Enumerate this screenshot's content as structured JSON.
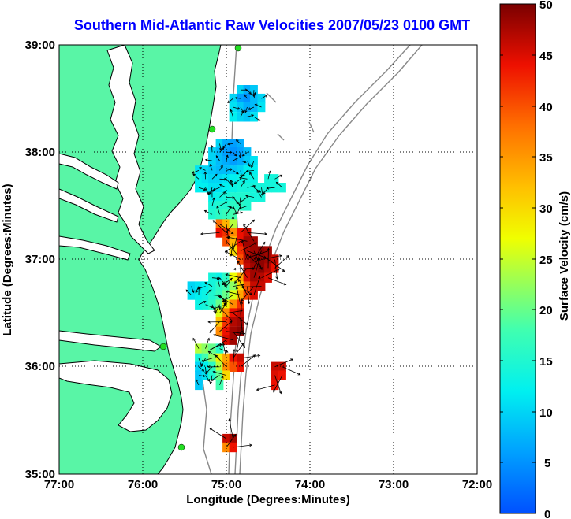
{
  "title": "Southern Mid-Atlantic Raw Velocities 2007/05/23 0100 GMT",
  "x_axis": {
    "label": "Longitude (Degrees:Minutes)",
    "ticks": [
      "77:00",
      "76:00",
      "75:00",
      "74:00",
      "73:00",
      "72:00"
    ]
  },
  "y_axis": {
    "label": "Latitude (Degrees:Minutes)",
    "ticks": [
      "39:00",
      "38:00",
      "37:00",
      "36:00",
      "35:00"
    ]
  },
  "colorbar": {
    "label": "Surface Velocity (cm/s)",
    "ticks": [
      "50",
      "45",
      "40",
      "35",
      "30",
      "25",
      "20",
      "15",
      "10",
      "5",
      "0"
    ],
    "min": 0,
    "max": 50
  },
  "colors": {
    "land": "#59f5a6",
    "title": "#0000ff",
    "vector": "#000000",
    "station": "#22dd22"
  },
  "chart_data": {
    "type": "heatmap",
    "title": "Southern Mid-Atlantic Raw Velocities 2007/05/23 0100 GMT",
    "xlabel": "Longitude (Degrees:Minutes)",
    "ylabel": "Latitude (Degrees:Minutes)",
    "xlim": [
      -77,
      -72
    ],
    "ylim": [
      35,
      39
    ],
    "grid": true,
    "colorbar_label": "Surface Velocity (cm/s)",
    "colorbar_range": [
      0,
      50
    ],
    "cells": [
      {
        "lon": -74.83,
        "lat": 38.58,
        "v": 10
      },
      {
        "lon": -74.75,
        "lat": 38.58,
        "v": 7
      },
      {
        "lon": -74.67,
        "lat": 38.58,
        "v": 9
      },
      {
        "lon": -74.92,
        "lat": 38.5,
        "v": 10
      },
      {
        "lon": -74.83,
        "lat": 38.5,
        "v": 6
      },
      {
        "lon": -74.75,
        "lat": 38.5,
        "v": 5
      },
      {
        "lon": -74.67,
        "lat": 38.5,
        "v": 8
      },
      {
        "lon": -74.58,
        "lat": 38.5,
        "v": 10
      },
      {
        "lon": -74.92,
        "lat": 38.42,
        "v": 11
      },
      {
        "lon": -74.83,
        "lat": 38.42,
        "v": 9
      },
      {
        "lon": -74.75,
        "lat": 38.42,
        "v": 7
      },
      {
        "lon": -74.67,
        "lat": 38.42,
        "v": 8
      },
      {
        "lon": -74.58,
        "lat": 38.42,
        "v": 11
      },
      {
        "lon": -74.92,
        "lat": 38.33,
        "v": 12
      },
      {
        "lon": -74.83,
        "lat": 38.33,
        "v": 10
      },
      {
        "lon": -74.75,
        "lat": 38.33,
        "v": 9
      },
      {
        "lon": -74.67,
        "lat": 38.33,
        "v": 11
      },
      {
        "lon": -75.08,
        "lat": 38.08,
        "v": 10
      },
      {
        "lon": -75.0,
        "lat": 38.08,
        "v": 7
      },
      {
        "lon": -74.92,
        "lat": 38.08,
        "v": 6
      },
      {
        "lon": -74.83,
        "lat": 38.08,
        "v": 7
      },
      {
        "lon": -75.17,
        "lat": 38.0,
        "v": 10
      },
      {
        "lon": -75.08,
        "lat": 38.0,
        "v": 8
      },
      {
        "lon": -75.0,
        "lat": 38.0,
        "v": 6
      },
      {
        "lon": -74.92,
        "lat": 38.0,
        "v": 5
      },
      {
        "lon": -74.83,
        "lat": 38.0,
        "v": 6
      },
      {
        "lon": -74.75,
        "lat": 38.0,
        "v": 8
      },
      {
        "lon": -75.17,
        "lat": 37.92,
        "v": 10
      },
      {
        "lon": -75.08,
        "lat": 37.92,
        "v": 8
      },
      {
        "lon": -75.0,
        "lat": 37.92,
        "v": 7
      },
      {
        "lon": -74.92,
        "lat": 37.92,
        "v": 6
      },
      {
        "lon": -74.83,
        "lat": 37.92,
        "v": 7
      },
      {
        "lon": -74.75,
        "lat": 37.92,
        "v": 9
      },
      {
        "lon": -74.67,
        "lat": 37.92,
        "v": 11
      },
      {
        "lon": -75.33,
        "lat": 37.83,
        "v": 11
      },
      {
        "lon": -75.25,
        "lat": 37.83,
        "v": 10
      },
      {
        "lon": -75.17,
        "lat": 37.83,
        "v": 9
      },
      {
        "lon": -75.08,
        "lat": 37.83,
        "v": 8
      },
      {
        "lon": -75.0,
        "lat": 37.83,
        "v": 8
      },
      {
        "lon": -74.92,
        "lat": 37.83,
        "v": 9
      },
      {
        "lon": -74.83,
        "lat": 37.83,
        "v": 10
      },
      {
        "lon": -74.75,
        "lat": 37.83,
        "v": 12
      },
      {
        "lon": -74.67,
        "lat": 37.83,
        "v": 12
      },
      {
        "lon": -75.33,
        "lat": 37.75,
        "v": 12
      },
      {
        "lon": -75.25,
        "lat": 37.75,
        "v": 11
      },
      {
        "lon": -75.17,
        "lat": 37.75,
        "v": 10
      },
      {
        "lon": -75.08,
        "lat": 37.75,
        "v": 10
      },
      {
        "lon": -75.0,
        "lat": 37.75,
        "v": 11
      },
      {
        "lon": -74.92,
        "lat": 37.75,
        "v": 12
      },
      {
        "lon": -74.83,
        "lat": 37.75,
        "v": 13
      },
      {
        "lon": -74.75,
        "lat": 37.75,
        "v": 13
      },
      {
        "lon": -74.67,
        "lat": 37.75,
        "v": 13
      },
      {
        "lon": -74.5,
        "lat": 37.75,
        "v": 14
      },
      {
        "lon": -74.42,
        "lat": 37.75,
        "v": 14
      },
      {
        "lon": -75.33,
        "lat": 37.67,
        "v": 12
      },
      {
        "lon": -75.25,
        "lat": 37.67,
        "v": 12
      },
      {
        "lon": -75.17,
        "lat": 37.67,
        "v": 11
      },
      {
        "lon": -75.08,
        "lat": 37.67,
        "v": 11
      },
      {
        "lon": -75.0,
        "lat": 37.67,
        "v": 12
      },
      {
        "lon": -74.92,
        "lat": 37.67,
        "v": 13
      },
      {
        "lon": -74.83,
        "lat": 37.67,
        "v": 14
      },
      {
        "lon": -74.75,
        "lat": 37.67,
        "v": 14
      },
      {
        "lon": -74.67,
        "lat": 37.67,
        "v": 14
      },
      {
        "lon": -74.58,
        "lat": 37.67,
        "v": 14
      },
      {
        "lon": -74.5,
        "lat": 37.67,
        "v": 14
      },
      {
        "lon": -74.42,
        "lat": 37.67,
        "v": 14
      },
      {
        "lon": -74.33,
        "lat": 37.67,
        "v": 14
      },
      {
        "lon": -75.17,
        "lat": 37.58,
        "v": 12
      },
      {
        "lon": -75.08,
        "lat": 37.58,
        "v": 13
      },
      {
        "lon": -75.0,
        "lat": 37.58,
        "v": 14
      },
      {
        "lon": -74.92,
        "lat": 37.58,
        "v": 15
      },
      {
        "lon": -74.83,
        "lat": 37.58,
        "v": 15
      },
      {
        "lon": -74.75,
        "lat": 37.58,
        "v": 15
      },
      {
        "lon": -74.67,
        "lat": 37.58,
        "v": 14
      },
      {
        "lon": -74.58,
        "lat": 37.58,
        "v": 14
      },
      {
        "lon": -75.17,
        "lat": 37.5,
        "v": 14
      },
      {
        "lon": -75.08,
        "lat": 37.5,
        "v": 15
      },
      {
        "lon": -75.0,
        "lat": 37.5,
        "v": 15
      },
      {
        "lon": -74.92,
        "lat": 37.5,
        "v": 16
      },
      {
        "lon": -74.83,
        "lat": 37.5,
        "v": 16
      },
      {
        "lon": -74.75,
        "lat": 37.5,
        "v": 15
      },
      {
        "lon": -75.17,
        "lat": 37.42,
        "v": 15
      },
      {
        "lon": -75.08,
        "lat": 37.42,
        "v": 16
      },
      {
        "lon": -75.0,
        "lat": 37.42,
        "v": 17
      },
      {
        "lon": -74.92,
        "lat": 37.42,
        "v": 18
      },
      {
        "lon": -75.08,
        "lat": 37.33,
        "v": 38
      },
      {
        "lon": -75.0,
        "lat": 37.33,
        "v": 33
      },
      {
        "lon": -74.92,
        "lat": 37.33,
        "v": 24
      },
      {
        "lon": -75.08,
        "lat": 37.25,
        "v": 44
      },
      {
        "lon": -75.0,
        "lat": 37.25,
        "v": 42
      },
      {
        "lon": -74.92,
        "lat": 37.25,
        "v": 36
      },
      {
        "lon": -74.83,
        "lat": 37.25,
        "v": 44
      },
      {
        "lon": -74.75,
        "lat": 37.25,
        "v": 46
      },
      {
        "lon": -75.0,
        "lat": 37.17,
        "v": 40
      },
      {
        "lon": -74.92,
        "lat": 37.17,
        "v": 33
      },
      {
        "lon": -74.83,
        "lat": 37.17,
        "v": 44
      },
      {
        "lon": -74.75,
        "lat": 37.17,
        "v": 48
      },
      {
        "lon": -74.67,
        "lat": 37.17,
        "v": 48
      },
      {
        "lon": -74.92,
        "lat": 37.08,
        "v": 30
      },
      {
        "lon": -74.83,
        "lat": 37.08,
        "v": 42
      },
      {
        "lon": -74.75,
        "lat": 37.08,
        "v": 47
      },
      {
        "lon": -74.67,
        "lat": 37.08,
        "v": 48
      },
      {
        "lon": -74.58,
        "lat": 37.08,
        "v": 49
      },
      {
        "lon": -74.5,
        "lat": 37.08,
        "v": 48
      },
      {
        "lon": -74.83,
        "lat": 37.0,
        "v": 40
      },
      {
        "lon": -74.75,
        "lat": 37.0,
        "v": 47
      },
      {
        "lon": -74.67,
        "lat": 37.0,
        "v": 49
      },
      {
        "lon": -74.58,
        "lat": 37.0,
        "v": 49
      },
      {
        "lon": -74.5,
        "lat": 37.0,
        "v": 48
      },
      {
        "lon": -74.42,
        "lat": 37.0,
        "v": 46
      },
      {
        "lon": -74.75,
        "lat": 36.92,
        "v": 46
      },
      {
        "lon": -74.67,
        "lat": 36.92,
        "v": 48
      },
      {
        "lon": -74.58,
        "lat": 36.92,
        "v": 49
      },
      {
        "lon": -74.5,
        "lat": 36.92,
        "v": 47
      },
      {
        "lon": -74.42,
        "lat": 36.92,
        "v": 44
      },
      {
        "lon": -75.17,
        "lat": 36.83,
        "v": 14
      },
      {
        "lon": -75.08,
        "lat": 36.83,
        "v": 13
      },
      {
        "lon": -75.0,
        "lat": 36.83,
        "v": 16
      },
      {
        "lon": -74.92,
        "lat": 36.83,
        "v": 27
      },
      {
        "lon": -74.83,
        "lat": 36.83,
        "v": 34
      },
      {
        "lon": -74.75,
        "lat": 36.83,
        "v": 45
      },
      {
        "lon": -74.67,
        "lat": 36.83,
        "v": 48
      },
      {
        "lon": -74.58,
        "lat": 36.83,
        "v": 47
      },
      {
        "lon": -74.5,
        "lat": 36.83,
        "v": 45
      },
      {
        "lon": -75.42,
        "lat": 36.75,
        "v": 10
      },
      {
        "lon": -75.33,
        "lat": 36.75,
        "v": 11
      },
      {
        "lon": -75.25,
        "lat": 36.75,
        "v": 12
      },
      {
        "lon": -75.17,
        "lat": 36.75,
        "v": 14
      },
      {
        "lon": -75.08,
        "lat": 36.75,
        "v": 16
      },
      {
        "lon": -75.0,
        "lat": 36.75,
        "v": 18
      },
      {
        "lon": -74.92,
        "lat": 36.75,
        "v": 22
      },
      {
        "lon": -74.83,
        "lat": 36.75,
        "v": 30
      },
      {
        "lon": -74.75,
        "lat": 36.75,
        "v": 40
      },
      {
        "lon": -74.67,
        "lat": 36.75,
        "v": 46
      },
      {
        "lon": -74.58,
        "lat": 36.75,
        "v": 46
      },
      {
        "lon": -75.42,
        "lat": 36.67,
        "v": 11
      },
      {
        "lon": -75.33,
        "lat": 36.67,
        "v": 12
      },
      {
        "lon": -75.25,
        "lat": 36.67,
        "v": 13
      },
      {
        "lon": -75.17,
        "lat": 36.67,
        "v": 15
      },
      {
        "lon": -75.08,
        "lat": 36.67,
        "v": 17
      },
      {
        "lon": -75.0,
        "lat": 36.67,
        "v": 20
      },
      {
        "lon": -74.92,
        "lat": 36.67,
        "v": 26
      },
      {
        "lon": -74.83,
        "lat": 36.67,
        "v": 34
      },
      {
        "lon": -74.75,
        "lat": 36.67,
        "v": 41
      },
      {
        "lon": -74.67,
        "lat": 36.67,
        "v": 45
      },
      {
        "lon": -75.33,
        "lat": 36.58,
        "v": 13
      },
      {
        "lon": -75.25,
        "lat": 36.58,
        "v": 14
      },
      {
        "lon": -75.17,
        "lat": 36.58,
        "v": 16
      },
      {
        "lon": -75.08,
        "lat": 36.58,
        "v": 20
      },
      {
        "lon": -75.0,
        "lat": 36.58,
        "v": 28
      },
      {
        "lon": -74.92,
        "lat": 36.58,
        "v": 36
      },
      {
        "lon": -74.83,
        "lat": 36.58,
        "v": 42
      },
      {
        "lon": -75.08,
        "lat": 36.5,
        "v": 26
      },
      {
        "lon": -75.0,
        "lat": 36.5,
        "v": 36
      },
      {
        "lon": -74.92,
        "lat": 36.5,
        "v": 44
      },
      {
        "lon": -74.83,
        "lat": 36.5,
        "v": 46
      },
      {
        "lon": -75.08,
        "lat": 36.42,
        "v": 32
      },
      {
        "lon": -75.0,
        "lat": 36.42,
        "v": 42
      },
      {
        "lon": -74.92,
        "lat": 36.42,
        "v": 47
      },
      {
        "lon": -74.83,
        "lat": 36.42,
        "v": 48
      },
      {
        "lon": -75.08,
        "lat": 36.33,
        "v": 36
      },
      {
        "lon": -75.0,
        "lat": 36.33,
        "v": 44
      },
      {
        "lon": -74.92,
        "lat": 36.33,
        "v": 48
      },
      {
        "lon": -74.83,
        "lat": 36.33,
        "v": 49
      },
      {
        "lon": -75.0,
        "lat": 36.25,
        "v": 45
      },
      {
        "lon": -74.92,
        "lat": 36.25,
        "v": 48
      },
      {
        "lon": -75.33,
        "lat": 36.17,
        "v": 24
      },
      {
        "lon": -75.25,
        "lat": 36.17,
        "v": 22
      },
      {
        "lon": -75.17,
        "lat": 36.17,
        "v": 20
      },
      {
        "lon": -75.08,
        "lat": 36.17,
        "v": 16
      },
      {
        "lon": -75.33,
        "lat": 36.08,
        "v": 14
      },
      {
        "lon": -75.25,
        "lat": 36.08,
        "v": 18
      },
      {
        "lon": -75.17,
        "lat": 36.08,
        "v": 22
      },
      {
        "lon": -75.08,
        "lat": 36.08,
        "v": 28
      },
      {
        "lon": -75.0,
        "lat": 36.08,
        "v": 34
      },
      {
        "lon": -74.92,
        "lat": 36.08,
        "v": 44
      },
      {
        "lon": -74.83,
        "lat": 36.08,
        "v": 46
      },
      {
        "lon": -75.33,
        "lat": 36.0,
        "v": 10
      },
      {
        "lon": -75.25,
        "lat": 36.0,
        "v": 12
      },
      {
        "lon": -75.17,
        "lat": 36.0,
        "v": 16
      },
      {
        "lon": -75.08,
        "lat": 36.0,
        "v": 24
      },
      {
        "lon": -75.0,
        "lat": 36.0,
        "v": 36
      },
      {
        "lon": -74.92,
        "lat": 36.0,
        "v": 40
      },
      {
        "lon": -74.83,
        "lat": 36.0,
        "v": 44
      },
      {
        "lon": -75.33,
        "lat": 35.92,
        "v": 9
      },
      {
        "lon": -75.25,
        "lat": 35.92,
        "v": 11
      },
      {
        "lon": -75.17,
        "lat": 35.92,
        "v": 15
      },
      {
        "lon": -75.08,
        "lat": 35.92,
        "v": 20
      },
      {
        "lon": -75.0,
        "lat": 35.92,
        "v": 30
      },
      {
        "lon": -75.33,
        "lat": 35.83,
        "v": 9
      },
      {
        "lon": -75.08,
        "lat": 35.83,
        "v": 18
      },
      {
        "lon": -74.42,
        "lat": 36.0,
        "v": 46
      },
      {
        "lon": -74.33,
        "lat": 36.0,
        "v": 46
      },
      {
        "lon": -74.42,
        "lat": 35.92,
        "v": 45
      },
      {
        "lon": -74.33,
        "lat": 35.92,
        "v": 44
      },
      {
        "lon": -74.42,
        "lat": 35.83,
        "v": 44
      },
      {
        "lon": -75.0,
        "lat": 35.33,
        "v": 46
      },
      {
        "lon": -74.92,
        "lat": 35.33,
        "v": 48
      },
      {
        "lon": -75.0,
        "lat": 35.25,
        "v": 36
      },
      {
        "lon": -74.92,
        "lat": 35.25,
        "v": 44
      }
    ]
  }
}
